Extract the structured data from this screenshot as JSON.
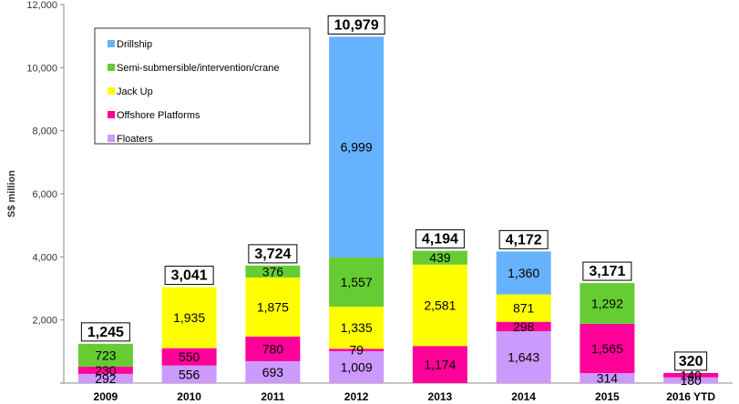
{
  "chart_data": {
    "type": "bar",
    "stacked": true,
    "title": "",
    "xlabel": "",
    "ylabel": "S$ million",
    "ylim": [
      0,
      12000
    ],
    "yticks": [
      "",
      "2,000",
      "4,000",
      "6,000",
      "8,000",
      "10,000",
      "12,000"
    ],
    "grid": false,
    "legend_position": "top-left",
    "categories": [
      "2009",
      "2010",
      "2011",
      "2012",
      "2013",
      "2014",
      "2015",
      "2016 YTD"
    ],
    "series": [
      {
        "name": "Floaters",
        "color": "#cc99ff",
        "values": [
          292,
          556,
          693,
          1009,
          0,
          1643,
          314,
          180
        ],
        "labels": [
          "292",
          "556",
          "693",
          "1,009",
          "",
          "1,643",
          "314",
          "180"
        ]
      },
      {
        "name": "Offshore Platforms",
        "color": "#ff0099",
        "values": [
          230,
          550,
          780,
          79,
          1174,
          298,
          1565,
          140
        ],
        "labels": [
          "230",
          "550",
          "780",
          "79",
          "1,174",
          "298",
          "1,565",
          "140"
        ]
      },
      {
        "name": "Jack Up",
        "color": "#ffff00",
        "values": [
          0,
          1935,
          1875,
          1335,
          2581,
          871,
          0,
          0
        ],
        "labels": [
          "",
          "1,935",
          "1,875",
          "1,335",
          "2,581",
          "871",
          "",
          ""
        ]
      },
      {
        "name": "Semi-submersible/intervention/crane",
        "color": "#66cc33",
        "values": [
          723,
          0,
          376,
          1557,
          439,
          0,
          1292,
          0
        ],
        "labels": [
          "723",
          "",
          "376",
          "1,557",
          "439",
          "",
          "1,292",
          ""
        ]
      },
      {
        "name": "Drillship",
        "color": "#66b2ff",
        "values": [
          0,
          0,
          0,
          6999,
          0,
          1360,
          0,
          0
        ],
        "labels": [
          "",
          "",
          "",
          "6,999",
          "",
          "1,360",
          "",
          ""
        ]
      }
    ],
    "totals": [
      1245,
      3041,
      3724,
      10979,
      4194,
      4172,
      3171,
      320
    ],
    "total_labels": [
      "1,245",
      "3,041",
      "3,724",
      "10,979",
      "4,194",
      "4,172",
      "3,171",
      "320"
    ],
    "legend_order": [
      "Drillship",
      "Semi-submersible/intervention/crane",
      "Jack Up",
      "Offshore Platforms",
      "Floaters"
    ]
  }
}
